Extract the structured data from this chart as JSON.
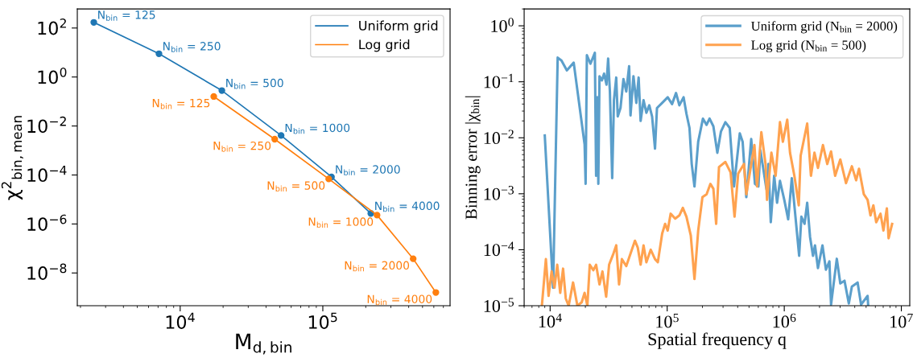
{
  "chart_data": [
    {
      "type": "line",
      "xlabel": "M$_{d,bin}$",
      "ylabel": "χ$^{2}$$_{bin,mean}$",
      "log": "xy",
      "marker": "circle",
      "legend": "upper right",
      "grid": false,
      "xlim": [
        1900,
        780000
      ],
      "ylim": [
        4.6e-10,
        600
      ],
      "xticks": [
        {
          "value": 10000,
          "label": "10$^{4}$"
        },
        {
          "value": 100000,
          "label": "10$^{5}$"
        }
      ],
      "yticks": [
        {
          "value": 100,
          "label": "10$^{2}$"
        },
        {
          "value": 1,
          "label": "10$^{0}$"
        },
        {
          "value": 0.01,
          "label": "10$^{−2}$"
        },
        {
          "value": 0.0001,
          "label": "10$^{−4}$"
        },
        {
          "value": 1e-06,
          "label": "10$^{−6}$"
        },
        {
          "value": 1e-08,
          "label": "10$^{−8}$"
        }
      ],
      "series": [
        {
          "name": "Uniform grid",
          "color": "#1f77b4",
          "x": [
            2480,
            7100,
            19600,
            51000,
            115000,
            217000
          ],
          "values": [
            170,
            8.9,
            0.28,
            0.0041,
            8.3e-05,
            2.7e-06
          ]
        },
        {
          "name": "Log grid",
          "color": "#ff7f0e",
          "x": [
            17200,
            46000,
            110000,
            240000,
            430000,
            620000
          ],
          "values": [
            0.16,
            0.0029,
            6.9e-05,
            2.3e-06,
            3.8e-08,
            1.6e-09
          ]
        }
      ],
      "annotations": [
        {
          "text": "N$_{bin}$ = 125",
          "x": 2480,
          "y": 170
        },
        {
          "text": "N$_{bin}$ = 250",
          "x": 7100,
          "y": 8.9
        },
        {
          "text": "N$_{bin}$ = 500",
          "x": 19600,
          "y": 0.28
        },
        {
          "text": "N$_{bin}$ = 1000",
          "x": 51000,
          "y": 0.0041
        },
        {
          "text": "N$_{bin}$ = 2000",
          "x": 115000,
          "y": 8.3e-05
        },
        {
          "text": "N$_{bin}$ = 4000",
          "x": 217000,
          "y": 2.7e-06
        },
        {
          "text": "N$_{bin}$ = 125",
          "x": 17200,
          "y": 0.16
        },
        {
          "text": "N$_{bin}$ = 250",
          "x": 46000,
          "y": 0.0029
        },
        {
          "text": "N$_{bin}$ = 500",
          "x": 110000,
          "y": 6.9e-05
        },
        {
          "text": "N$_{bin}$ = 1000",
          "x": 240000,
          "y": 2.3e-06
        },
        {
          "text": "N$_{bin}$ = 2000",
          "x": 430000,
          "y": 3.8e-08
        },
        {
          "text": "N$_{bin}$ = 4000",
          "x": 620000,
          "y": 1.6e-09
        }
      ]
    },
    {
      "type": "line",
      "xlabel": "Spatial frequency q",
      "ylabel": "Binning error |χ$_{bin}$|",
      "log": "xy",
      "legend": "upper right",
      "grid": false,
      "xlim": [
        6000,
        11800000
      ],
      "ylim": [
        1e-05,
        2
      ],
      "xticks": [
        {
          "value": 10000,
          "label": "10$^{4}$"
        },
        {
          "value": 100000,
          "label": "10$^{5}$"
        },
        {
          "value": 1000000,
          "label": "10$^{6}$"
        },
        {
          "value": 10000000,
          "label": "10$^{7}$"
        }
      ],
      "yticks": [
        {
          "value": 1,
          "label": "10$^{0}$"
        },
        {
          "value": 0.1,
          "label": "10$^{−1}$"
        },
        {
          "value": 0.01,
          "label": "10$^{−2}$"
        },
        {
          "value": 0.001,
          "label": "10$^{−3}$"
        },
        {
          "value": 0.0001,
          "label": "10$^{−4}$"
        },
        {
          "value": 1e-05,
          "label": "10$^{−5}$"
        }
      ],
      "series": [
        {
          "name": "Uniform grid (N$_{bin}$ = 2000)",
          "color": "#5b9fcb",
          "x": [
            9000,
            10600,
            11600,
            12500,
            13900,
            15900,
            19700,
            20100,
            20600,
            22100,
            24100,
            24700,
            25300,
            25800,
            26400,
            27700,
            28900,
            30300,
            31300,
            32400,
            33900,
            35100,
            36700,
            37800,
            39900,
            42300,
            44700,
            47300,
            48600,
            51500,
            54500,
            57000,
            59300,
            62800,
            66400,
            70300,
            74300,
            78700,
            81800,
            90600,
            101000,
            110000,
            119000,
            127000,
            138000,
            146000,
            155000,
            162000,
            171000,
            184000,
            202000,
            217000,
            230000,
            248000,
            268000,
            288000,
            314000,
            342000,
            372000,
            417000,
            441000,
            474000,
            522000,
            562000,
            601000,
            625000,
            705000,
            733000,
            767000,
            820000,
            868000,
            919000,
            1000000,
            1080000,
            1160000,
            1220000,
            1340000,
            1400000,
            1490000,
            1570000,
            1660000,
            1760000,
            1830000,
            1940000,
            2120000,
            2270000,
            2430000,
            2510000,
            2810000,
            3010000,
            3270000,
            3560000,
            3780000,
            4230000,
            4530000,
            5150000,
            5210000
          ],
          "values": [
            0.011,
            2.1e-05,
            0.27,
            0.24,
            0.16,
            0.22,
            0.0076,
            0.0015,
            0.3,
            0.21,
            0.33,
            0.0021,
            0.053,
            0.0015,
            0.126,
            0.106,
            0.14,
            0.089,
            0.26,
            0.067,
            0.0019,
            0.047,
            0.119,
            0.024,
            0.034,
            0.112,
            0.067,
            0.19,
            0.025,
            0.126,
            0.042,
            0.119,
            0.02,
            0.047,
            0.028,
            0.038,
            0.024,
            0.0064,
            0.034,
            0.042,
            0.053,
            0.04,
            0.063,
            0.038,
            0.053,
            0.027,
            0.015,
            0.0034,
            0.00135,
            0.0085,
            0.022,
            0.017,
            0.022,
            0.016,
            0.0054,
            0.013,
            0.019,
            0.015,
            0.00135,
            0.012,
            0.0085,
            0.00087,
            0.0095,
            0.0015,
            0.00135,
            0.006,
            0.0012,
            0.0034,
            0.00031,
            0.0021,
            0.00069,
            0.0017,
            0.00078,
            0.00035,
            0.0019,
            0.00062,
            7.8e-05,
            0.00039,
            0.00029,
            0.00069,
            0.00017,
            7.8e-05,
            0.00012,
            4.7e-05,
            0.00012,
            4.4e-05,
            6.2e-05,
            1.05e-05,
            6.9e-05,
            2.5e-05,
            2.8e-05,
            1.1e-05,
            2.2e-05,
            2.6e-05,
            1.05e-05,
            1.5e-05,
            1e-05
          ]
        },
        {
          "name": "Log grid (N$_{bin}$ = 500)",
          "color": "#ffa24f",
          "x": [
            8500,
            9200,
            9700,
            10300,
            10900,
            11500,
            12200,
            12900,
            13600,
            14400,
            15700,
            17100,
            18600,
            19700,
            20800,
            21800,
            23400,
            24700,
            26400,
            28000,
            30100,
            31900,
            34700,
            36700,
            38800,
            41000,
            44700,
            48600,
            53000,
            56000,
            59300,
            62800,
            66400,
            72300,
            78700,
            83200,
            90600,
            96000,
            101000,
            107000,
            117000,
            127000,
            136000,
            146000,
            159000,
            171000,
            184000,
            200000,
            217000,
            234000,
            248000,
            262000,
            277000,
            314000,
            348000,
            376000,
            404000,
            453000,
            474000,
            556000,
            585000,
            637000,
            692000,
            712000,
            776000,
            844000,
            919000,
            973000,
            1060000,
            1120000,
            1220000,
            1330000,
            1380000,
            1570000,
            1690000,
            1810000,
            1940000,
            2140000,
            2330000,
            2510000,
            2720000,
            3010000,
            3370000,
            3780000,
            4110000,
            4350000,
            4780000,
            5150000,
            5450000,
            5770000,
            6100000,
            6640000,
            7030000,
            7520000,
            7780000,
            8340000
          ],
          "values": [
            1e-05,
            6.8e-05,
            1.5e-05,
            4.1e-05,
            2.1e-05,
            5.4e-05,
            1.7e-05,
            4.6e-05,
            1.35e-05,
            1e-05,
            2.6e-05,
            1e-05,
            1.15e-05,
            1.7e-05,
            1e-05,
            5.4e-05,
            4.3e-05,
            5.4e-05,
            2.4e-05,
            4.1e-05,
            1.45e-05,
            5.4e-05,
            8.5e-05,
            0.00012,
            2.4e-05,
            6.8e-05,
            5.1e-05,
            8.5e-05,
            0.000145,
            0.00011,
            5.4e-05,
            0.00012,
            6e-05,
            0.0001,
            6.8e-05,
            6e-05,
            0.000195,
            0.00029,
            0.00022,
            0.00044,
            0.00036,
            0.00041,
            0.00056,
            0.00039,
            0.00018,
            3e-05,
            0.00022,
            0.00087,
            0.00098,
            0.0015,
            0.00123,
            0.00029,
            0.003,
            0.0037,
            0.0024,
            0.00039,
            0.0023,
            0.0034,
            0.00098,
            0.0074,
            0.00135,
            0.0126,
            0.0034,
            0.00078,
            0.0054,
            0.0021,
            0.019,
            0.0085,
            0.021,
            0.0054,
            0.0021,
            0.00062,
            0.0048,
            0.018,
            0.0021,
            0.0054,
            0.0029,
            0.0074,
            0.0034,
            0.0057,
            0.0021,
            0.0041,
            0.00155,
            0.0031,
            0.00174,
            0.0028,
            0.00098,
            0.00078,
            0.00041,
            0.00062,
            0.00031,
            0.00044,
            0.00022,
            0.00055,
            0.00016,
            0.00029
          ]
        }
      ]
    }
  ]
}
